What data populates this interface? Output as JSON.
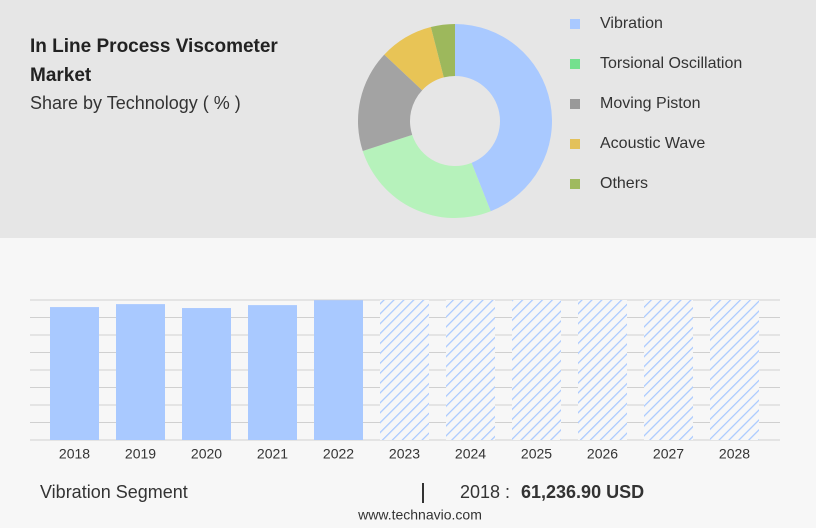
{
  "chart_data": [
    {
      "type": "donut",
      "title": "In Line Process Viscometer Market",
      "subtitle": "Share by Technology ( % )",
      "categories": [
        "Vibration",
        "Torsional Oscillation",
        "Moving Piston",
        "Acoustic Wave",
        "Others"
      ],
      "values": [
        44,
        26,
        17,
        9,
        4
      ],
      "colors": [
        "#a9c9ff",
        "#b6f2bb",
        "#a3a3a3",
        "#e8c456",
        "#9db85c"
      ],
      "legend_colors": [
        "#a9c9ff",
        "#74e08e",
        "#999999",
        "#e3c15a",
        "#9fba5f"
      ]
    },
    {
      "type": "bar",
      "categories": [
        "2018",
        "2019",
        "2020",
        "2021",
        "2022",
        "2023",
        "2024",
        "2025",
        "2026",
        "2027",
        "2028"
      ],
      "values": [
        61236.9,
        62600,
        60800,
        62150,
        64400,
        null,
        null,
        null,
        null,
        null,
        null
      ],
      "color": "#a9c9ff",
      "ylim": [
        0,
        64500
      ],
      "grid": true
    }
  ],
  "footer": {
    "segment": "Vibration Segment",
    "year": "2018 :",
    "value": "61,236.90 USD",
    "site": "www.technavio.com"
  }
}
